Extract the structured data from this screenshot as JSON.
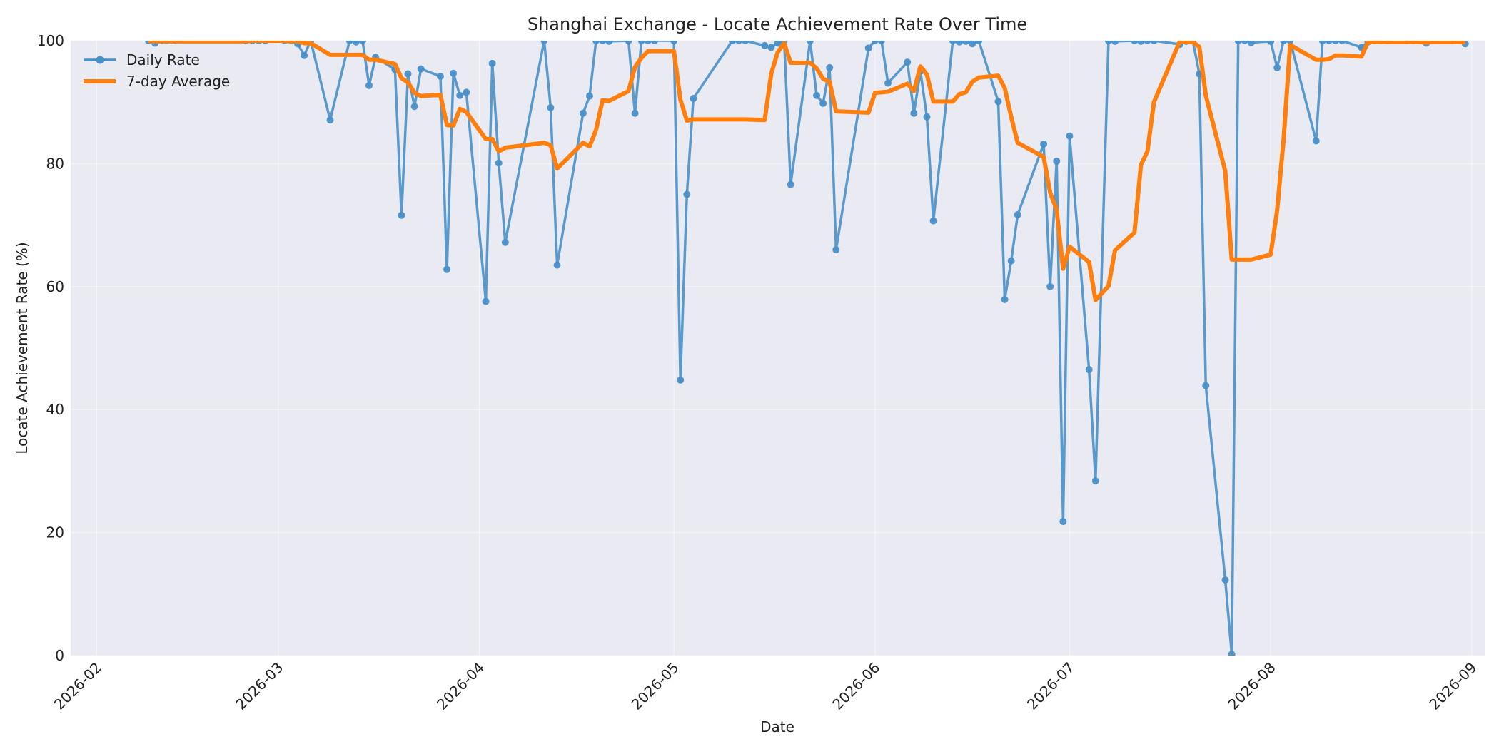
{
  "chart_data": {
    "type": "line",
    "title": "Shanghai Exchange - Locate Achievement Rate Over Time",
    "xlabel": "Date",
    "ylabel": "Locate Achievement Rate (%)",
    "xlim": [
      "2026-01-28",
      "2026-09-03"
    ],
    "ylim": [
      0,
      100
    ],
    "x_ticks": [
      "2026-02",
      "2026-03",
      "2026-04",
      "2026-05",
      "2026-06",
      "2026-07",
      "2026-08",
      "2026-09"
    ],
    "y_ticks": [
      0,
      20,
      40,
      60,
      80,
      100
    ],
    "grid": true,
    "legend_position": "top-left",
    "series": [
      {
        "name": "Daily Rate",
        "color": "#4a90c8",
        "marker": "circle",
        "points": [
          [
            "2026-02-09",
            100
          ],
          [
            "2026-02-10",
            99.6
          ],
          [
            "2026-02-11",
            100
          ],
          [
            "2026-02-12",
            100
          ],
          [
            "2026-02-13",
            100
          ],
          [
            "2026-02-24",
            100
          ],
          [
            "2026-02-25",
            100
          ],
          [
            "2026-02-26",
            100
          ],
          [
            "2026-02-27",
            100
          ],
          [
            "2026-03-02",
            100
          ],
          [
            "2026-03-03",
            100
          ],
          [
            "2026-03-04",
            99.5
          ],
          [
            "2026-03-05",
            97.6
          ],
          [
            "2026-03-06",
            100
          ],
          [
            "2026-03-09",
            87.1
          ],
          [
            "2026-03-12",
            100
          ],
          [
            "2026-03-13",
            99.8
          ],
          [
            "2026-03-14",
            100
          ],
          [
            "2026-03-15",
            92.7
          ],
          [
            "2026-03-16",
            97.3
          ],
          [
            "2026-03-19",
            95.3
          ],
          [
            "2026-03-20",
            71.6
          ],
          [
            "2026-03-21",
            94.6
          ],
          [
            "2026-03-22",
            89.3
          ],
          [
            "2026-03-23",
            95.4
          ],
          [
            "2026-03-26",
            94.2
          ],
          [
            "2026-03-27",
            62.8
          ],
          [
            "2026-03-28",
            94.7
          ],
          [
            "2026-03-29",
            91.1
          ],
          [
            "2026-03-30",
            91.6
          ],
          [
            "2026-04-02",
            57.6
          ],
          [
            "2026-04-03",
            96.3
          ],
          [
            "2026-04-04",
            80.1
          ],
          [
            "2026-04-05",
            67.2
          ],
          [
            "2026-04-11",
            100
          ],
          [
            "2026-04-12",
            89.1
          ],
          [
            "2026-04-13",
            63.5
          ],
          [
            "2026-04-17",
            88.2
          ],
          [
            "2026-04-18",
            91
          ],
          [
            "2026-04-19",
            100
          ],
          [
            "2026-04-20",
            100
          ],
          [
            "2026-04-21",
            99.9
          ],
          [
            "2026-04-24",
            100
          ],
          [
            "2026-04-25",
            88.2
          ],
          [
            "2026-04-26",
            100
          ],
          [
            "2026-04-27",
            100
          ],
          [
            "2026-04-28",
            100
          ],
          [
            "2026-05-01",
            100
          ],
          [
            "2026-05-02",
            44.8
          ],
          [
            "2026-05-03",
            75
          ],
          [
            "2026-05-04",
            90.6
          ],
          [
            "2026-05-10",
            100
          ],
          [
            "2026-05-11",
            100
          ],
          [
            "2026-05-12",
            100
          ],
          [
            "2026-05-15",
            99.2
          ],
          [
            "2026-05-16",
            98.9
          ],
          [
            "2026-05-17",
            99.6
          ],
          [
            "2026-05-18",
            100
          ],
          [
            "2026-05-19",
            76.6
          ],
          [
            "2026-05-22",
            100
          ],
          [
            "2026-05-23",
            91.1
          ],
          [
            "2026-05-24",
            89.8
          ],
          [
            "2026-05-25",
            95.6
          ],
          [
            "2026-05-26",
            66
          ],
          [
            "2026-05-31",
            98.8
          ],
          [
            "2026-06-01",
            100
          ],
          [
            "2026-06-02",
            100
          ],
          [
            "2026-06-03",
            93.1
          ],
          [
            "2026-06-06",
            96.5
          ],
          [
            "2026-06-07",
            88.2
          ],
          [
            "2026-06-08",
            95
          ],
          [
            "2026-06-09",
            87.6
          ],
          [
            "2026-06-10",
            70.7
          ],
          [
            "2026-06-13",
            100
          ],
          [
            "2026-06-14",
            99.8
          ],
          [
            "2026-06-15",
            99.9
          ],
          [
            "2026-06-16",
            99.5
          ],
          [
            "2026-06-17",
            100
          ],
          [
            "2026-06-20",
            90.1
          ],
          [
            "2026-06-21",
            57.9
          ],
          [
            "2026-06-22",
            64.2
          ],
          [
            "2026-06-23",
            71.7
          ],
          [
            "2026-06-27",
            83.2
          ],
          [
            "2026-06-28",
            60
          ],
          [
            "2026-06-29",
            80.4
          ],
          [
            "2026-06-30",
            21.8
          ],
          [
            "2026-07-01",
            84.5
          ],
          [
            "2026-07-04",
            46.5
          ],
          [
            "2026-07-05",
            28.4
          ],
          [
            "2026-07-07",
            100
          ],
          [
            "2026-07-08",
            99.9
          ],
          [
            "2026-07-11",
            100
          ],
          [
            "2026-07-12",
            99.9
          ],
          [
            "2026-07-13",
            100
          ],
          [
            "2026-07-14",
            100
          ],
          [
            "2026-07-18",
            99.4
          ],
          [
            "2026-07-19",
            99.9
          ],
          [
            "2026-07-20",
            100
          ],
          [
            "2026-07-21",
            94.6
          ],
          [
            "2026-07-22",
            43.9
          ],
          [
            "2026-07-25",
            12.3
          ],
          [
            "2026-07-26",
            0.2
          ],
          [
            "2026-07-27",
            100
          ],
          [
            "2026-07-28",
            100
          ],
          [
            "2026-07-29",
            99.7
          ],
          [
            "2026-08-01",
            99.9
          ],
          [
            "2026-08-02",
            95.6
          ],
          [
            "2026-08-03",
            100
          ],
          [
            "2026-08-04",
            100
          ],
          [
            "2026-08-08",
            83.7
          ],
          [
            "2026-08-09",
            100
          ],
          [
            "2026-08-10",
            100
          ],
          [
            "2026-08-11",
            100
          ],
          [
            "2026-08-12",
            100
          ],
          [
            "2026-08-15",
            98.9
          ],
          [
            "2026-08-16",
            99.8
          ],
          [
            "2026-08-17",
            100
          ],
          [
            "2026-08-18",
            100
          ],
          [
            "2026-08-19",
            100
          ],
          [
            "2026-08-22",
            100
          ],
          [
            "2026-08-23",
            100
          ],
          [
            "2026-08-24",
            100
          ],
          [
            "2026-08-25",
            99.6
          ],
          [
            "2026-08-26",
            100
          ],
          [
            "2026-08-29",
            100
          ],
          [
            "2026-08-30",
            100
          ],
          [
            "2026-08-31",
            99.5
          ]
        ]
      },
      {
        "name": "7-day Average",
        "color": "#ff7f0e",
        "marker": "none",
        "points": [
          [
            "2026-02-09",
            100
          ],
          [
            "2026-02-10",
            99.9
          ],
          [
            "2026-02-11",
            99.9
          ],
          [
            "2026-02-12",
            99.9
          ],
          [
            "2026-02-13",
            99.9
          ],
          [
            "2026-02-24",
            99.9
          ],
          [
            "2026-02-25",
            100
          ],
          [
            "2026-02-26",
            100
          ],
          [
            "2026-02-27",
            100
          ],
          [
            "2026-03-02",
            100
          ],
          [
            "2026-03-03",
            99.9
          ],
          [
            "2026-03-04",
            99.9
          ],
          [
            "2026-03-05",
            99.6
          ],
          [
            "2026-03-06",
            99.6
          ],
          [
            "2026-03-09",
            97.7
          ],
          [
            "2026-03-12",
            97.7
          ],
          [
            "2026-03-13",
            97.7
          ],
          [
            "2026-03-14",
            97.7
          ],
          [
            "2026-03-15",
            96.9
          ],
          [
            "2026-03-16",
            96.9
          ],
          [
            "2026-03-19",
            96.2
          ],
          [
            "2026-03-20",
            93.9
          ],
          [
            "2026-03-21",
            93.2
          ],
          [
            "2026-03-22",
            91.5
          ],
          [
            "2026-03-23",
            91
          ],
          [
            "2026-03-26",
            91.2
          ],
          [
            "2026-03-27",
            86.3
          ],
          [
            "2026-03-28",
            86.2
          ],
          [
            "2026-03-29",
            88.9
          ],
          [
            "2026-03-30",
            88.4
          ],
          [
            "2026-04-02",
            84
          ],
          [
            "2026-04-03",
            84
          ],
          [
            "2026-04-04",
            82
          ],
          [
            "2026-04-05",
            82.6
          ],
          [
            "2026-04-11",
            83.4
          ],
          [
            "2026-04-12",
            83
          ],
          [
            "2026-04-13",
            79.2
          ],
          [
            "2026-04-17",
            83.4
          ],
          [
            "2026-04-18",
            82.8
          ],
          [
            "2026-04-19",
            85.5
          ],
          [
            "2026-04-20",
            90.3
          ],
          [
            "2026-04-21",
            90.2
          ],
          [
            "2026-04-24",
            91.8
          ],
          [
            "2026-04-25",
            95.7
          ],
          [
            "2026-04-26",
            97.2
          ],
          [
            "2026-04-27",
            98.3
          ],
          [
            "2026-04-28",
            98.3
          ],
          [
            "2026-05-01",
            98.3
          ],
          [
            "2026-05-02",
            90.4
          ],
          [
            "2026-05-03",
            87
          ],
          [
            "2026-05-04",
            87.2
          ],
          [
            "2026-05-10",
            87.2
          ],
          [
            "2026-05-11",
            87.2
          ],
          [
            "2026-05-12",
            87.2
          ],
          [
            "2026-05-15",
            87.1
          ],
          [
            "2026-05-16",
            94.6
          ],
          [
            "2026-05-17",
            98.1
          ],
          [
            "2026-05-18",
            99.6
          ],
          [
            "2026-05-19",
            96.4
          ],
          [
            "2026-05-22",
            96.4
          ],
          [
            "2026-05-23",
            95.5
          ],
          [
            "2026-05-24",
            93.8
          ],
          [
            "2026-05-25",
            93.3
          ],
          [
            "2026-05-26",
            88.5
          ],
          [
            "2026-05-31",
            88.3
          ],
          [
            "2026-06-01",
            91.5
          ],
          [
            "2026-06-02",
            91.6
          ],
          [
            "2026-06-03",
            91.7
          ],
          [
            "2026-06-06",
            93
          ],
          [
            "2026-06-07",
            91.8
          ],
          [
            "2026-06-08",
            95.8
          ],
          [
            "2026-06-09",
            94.5
          ],
          [
            "2026-06-10",
            90.1
          ],
          [
            "2026-06-13",
            90.1
          ],
          [
            "2026-06-14",
            91.3
          ],
          [
            "2026-06-15",
            91.6
          ],
          [
            "2026-06-16",
            93.3
          ],
          [
            "2026-06-17",
            94
          ],
          [
            "2026-06-20",
            94.3
          ],
          [
            "2026-06-21",
            92.3
          ],
          [
            "2026-06-22",
            87.6
          ],
          [
            "2026-06-23",
            83.4
          ],
          [
            "2026-06-27",
            81.1
          ],
          [
            "2026-06-28",
            75.3
          ],
          [
            "2026-06-29",
            72.5
          ],
          [
            "2026-06-30",
            62.9
          ],
          [
            "2026-07-01",
            66.5
          ],
          [
            "2026-07-04",
            64
          ],
          [
            "2026-07-05",
            57.8
          ],
          [
            "2026-07-07",
            60.1
          ],
          [
            "2026-07-08",
            65.9
          ],
          [
            "2026-07-11",
            68.8
          ],
          [
            "2026-07-12",
            79.8
          ],
          [
            "2026-07-13",
            82
          ],
          [
            "2026-07-14",
            90
          ],
          [
            "2026-07-18",
            99.9
          ],
          [
            "2026-07-19",
            99.8
          ],
          [
            "2026-07-20",
            99.8
          ],
          [
            "2026-07-21",
            99
          ],
          [
            "2026-07-22",
            91.1
          ],
          [
            "2026-07-25",
            78.8
          ],
          [
            "2026-07-26",
            64.4
          ],
          [
            "2026-07-27",
            64.4
          ],
          [
            "2026-07-28",
            64.4
          ],
          [
            "2026-07-29",
            64.4
          ],
          [
            "2026-08-01",
            65.2
          ],
          [
            "2026-08-02",
            72.4
          ],
          [
            "2026-08-03",
            84
          ],
          [
            "2026-08-04",
            99.3
          ],
          [
            "2026-08-08",
            96.9
          ],
          [
            "2026-08-09",
            96.9
          ],
          [
            "2026-08-10",
            97
          ],
          [
            "2026-08-11",
            97.6
          ],
          [
            "2026-08-12",
            97.6
          ],
          [
            "2026-08-15",
            97.4
          ],
          [
            "2026-08-16",
            99.8
          ],
          [
            "2026-08-17",
            99.8
          ],
          [
            "2026-08-18",
            99.8
          ],
          [
            "2026-08-19",
            99.8
          ],
          [
            "2026-08-22",
            99.8
          ],
          [
            "2026-08-23",
            99.8
          ],
          [
            "2026-08-24",
            99.8
          ],
          [
            "2026-08-25",
            99.7
          ],
          [
            "2026-08-26",
            99.8
          ],
          [
            "2026-08-29",
            99.8
          ],
          [
            "2026-08-30",
            99.8
          ],
          [
            "2026-08-31",
            99.7
          ]
        ]
      }
    ]
  },
  "colors": {
    "plot_background": "#e9eaf2",
    "grid": "#f4f5f9",
    "daily_rate": "#4a90c8",
    "seven_day_average": "#ff7f0e"
  }
}
